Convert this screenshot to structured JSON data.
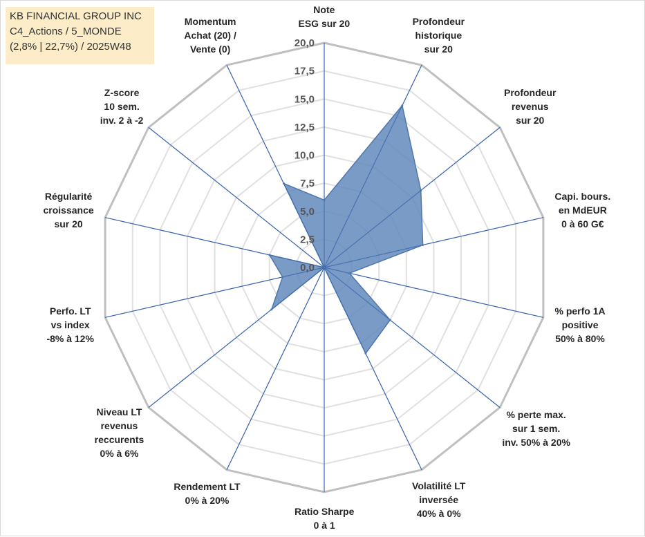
{
  "header": {
    "line1": "KB FINANCIAL GROUP INC",
    "line2": "C4_Actions / 5_MONDE",
    "line3": "(2,8% | 22,7%) / 2025W48"
  },
  "colors": {
    "fill": "#5b85b8",
    "outline": "#4e77ad",
    "spoke": "#3a66b0",
    "grid_outer": "#bfbfbf",
    "grid_inner": "#e0e0e0",
    "header_bg": "#fcecc8"
  },
  "chart_data": {
    "type": "radar",
    "title": "",
    "rlim": [
      0,
      20
    ],
    "ticks": [
      "0,0",
      "2,5",
      "5,0",
      "7,5",
      "10,0",
      "12,5",
      "15,0",
      "17,5",
      "20,0"
    ],
    "grid": true,
    "categories": [
      [
        "Note",
        "ESG sur 20"
      ],
      [
        "Profondeur",
        "historique",
        "sur 20"
      ],
      [
        "Profondeur",
        "revenus",
        "sur 20"
      ],
      [
        "Capi. bours.",
        "en MdEUR",
        "0 à 60 G€"
      ],
      [
        "% perfo 1A",
        "positive",
        "50% à 80%"
      ],
      [
        "% perte max.",
        "sur 1 sem.",
        "inv. 50% à 20%"
      ],
      [
        "Volatilité LT",
        "inversée",
        "40% à 0%"
      ],
      [
        "Ratio Sharpe",
        "0 à 1"
      ],
      [
        "Rendement LT",
        "0% à 20%"
      ],
      [
        "Niveau LT",
        "revenus",
        "reccurents",
        "0% à 6%"
      ],
      [
        "Perfo. LT",
        "vs index",
        "-8% à 12%"
      ],
      [
        "Régularité",
        "croissance",
        "sur 20"
      ],
      [
        "Z-score",
        "10 sem.",
        "inv. 2 à -2"
      ],
      [
        "Momentum",
        "Achat (20) /",
        "Vente (0)"
      ]
    ],
    "values": [
      6.0,
      16.0,
      11.0,
      9.0,
      2.3,
      7.5,
      8.5,
      0.0,
      0.0,
      6.0,
      3.8,
      5.0,
      0.0,
      8.3
    ]
  }
}
